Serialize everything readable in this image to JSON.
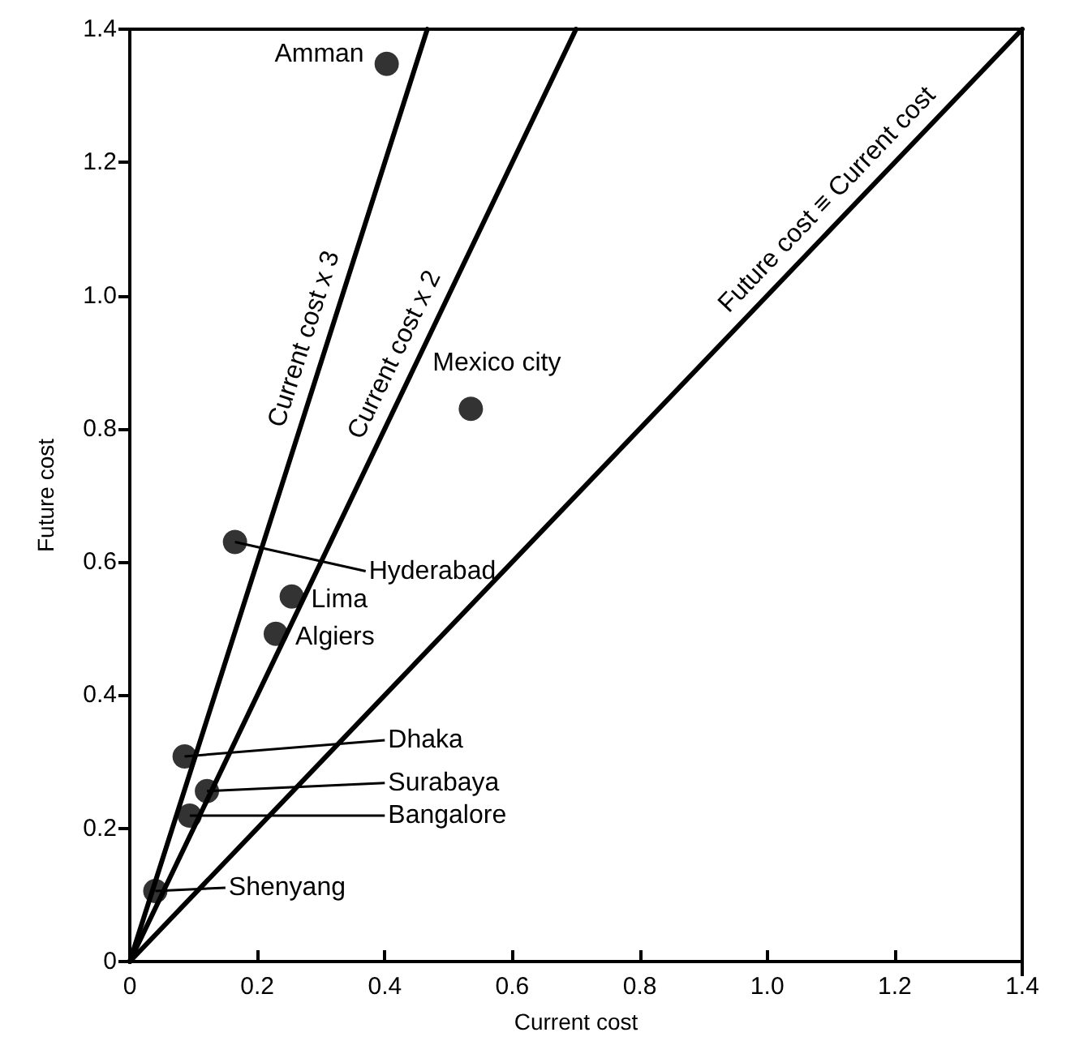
{
  "chart_data": {
    "type": "scatter",
    "xlabel": "Current cost",
    "ylabel": "Future cost",
    "xlim": [
      0,
      1.4
    ],
    "ylim": [
      0,
      1.4
    ],
    "xticks": [
      0,
      0.2,
      0.4,
      0.6,
      0.8,
      {
        "value": 1,
        "label": "1.0"
      },
      1.2,
      1.4
    ],
    "yticks": [
      0,
      0.2,
      0.4,
      0.6,
      0.8,
      {
        "value": 1,
        "label": "1.0"
      },
      1.2,
      1.4
    ],
    "grid": false,
    "legend": false,
    "marker": "circle",
    "series": [
      {
        "color": "#000000",
        "x": [
          0.403,
          0.535,
          0.165,
          0.254,
          0.229,
          0.086,
          0.121,
          0.094,
          0.04
        ],
        "values": [
          1.348,
          0.83,
          0.63,
          0.548,
          0.492,
          0.308,
          0.256,
          0.219,
          0.106
        ]
      },
      {
        "type": "line",
        "name": "Current cost x 3",
        "color": "#000000",
        "marker": "none",
        "line_style": "solid",
        "x": [
          0,
          0.4667
        ],
        "values": [
          0,
          1.4
        ]
      },
      {
        "type": "line",
        "name": "Current cost x 2",
        "color": "#000000",
        "marker": "none",
        "line_style": "solid",
        "x": [
          0,
          0.7
        ],
        "values": [
          0,
          1.4
        ]
      },
      {
        "type": "line",
        "name": "Future cost ≡ Current cost",
        "color": "#000000",
        "marker": "none",
        "line_style": "solid",
        "x": [
          0,
          1.4
        ],
        "values": [
          0,
          1.4
        ]
      }
    ],
    "annotations": [
      {
        "text": "Amman",
        "x": 0.403,
        "y": 1.348
      },
      {
        "text": "Mexico city",
        "x": 0.535,
        "y": 0.83
      },
      {
        "text": "Hyderabad",
        "x": 0.165,
        "y": 0.63
      },
      {
        "text": "Lima",
        "x": 0.254,
        "y": 0.548
      },
      {
        "text": "Algiers",
        "x": 0.229,
        "y": 0.492
      },
      {
        "text": "Dhaka",
        "x": 0.086,
        "y": 0.308
      },
      {
        "text": "Surabaya",
        "x": 0.121,
        "y": 0.256
      },
      {
        "text": "Bangalore",
        "x": 0.094,
        "y": 0.219
      },
      {
        "text": "Shenyang",
        "x": 0.04,
        "y": 0.106
      }
    ]
  }
}
